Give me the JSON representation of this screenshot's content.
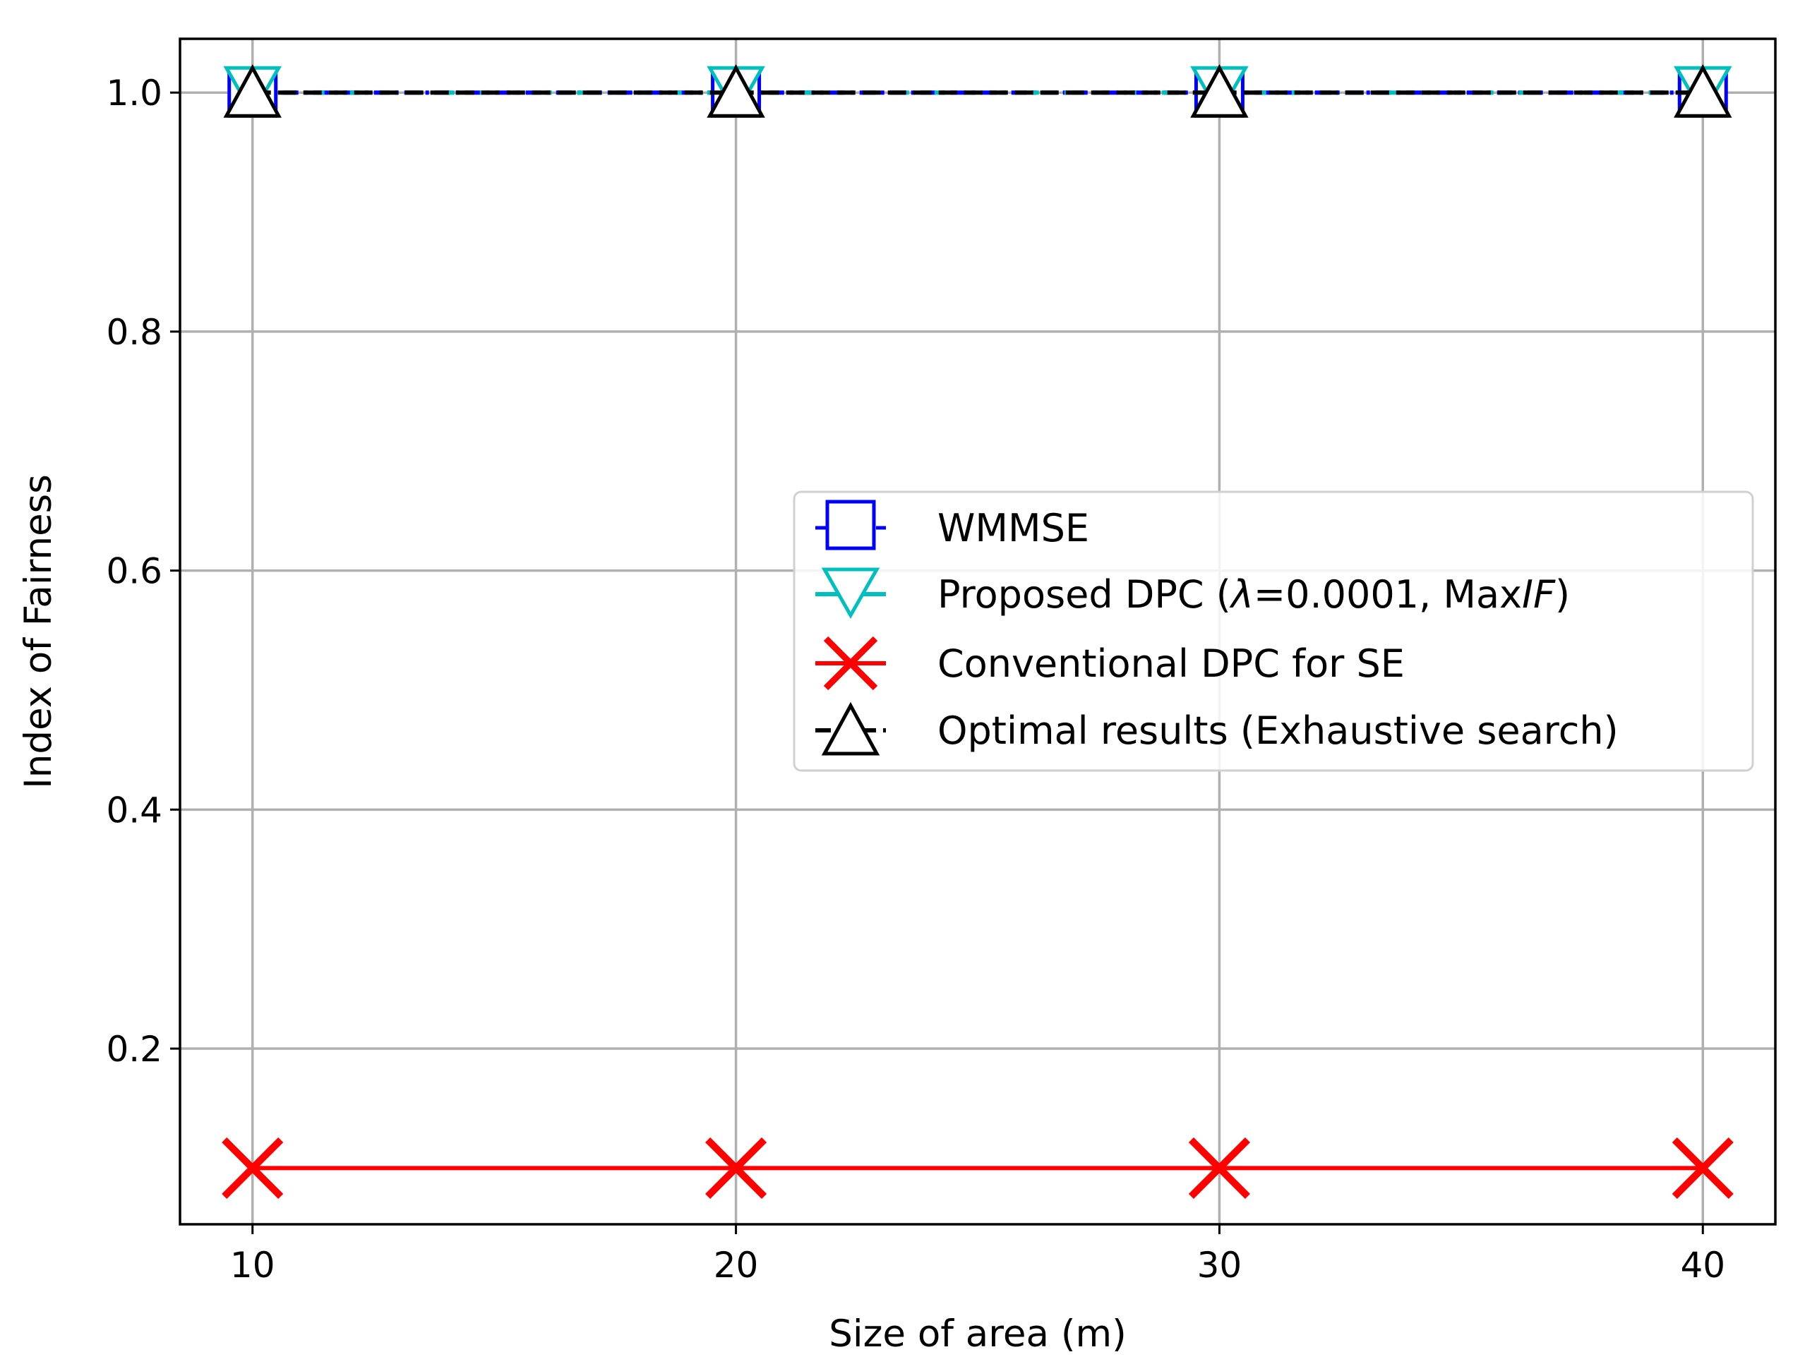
{
  "chart_data": {
    "type": "line",
    "title": "",
    "xlabel": "Size of area (m)",
    "ylabel": "Index of Fairness",
    "x": [
      10,
      20,
      30,
      40
    ],
    "xticks": [
      "10",
      "20",
      "30",
      "40"
    ],
    "yticks": [
      "0.2",
      "0.4",
      "0.6",
      "0.8",
      "1.0"
    ],
    "ytick_values": [
      0.2,
      0.4,
      0.6,
      0.8,
      1.0
    ],
    "xlim": [
      8.5,
      41.5
    ],
    "ylim": [
      0.053,
      1.045
    ],
    "grid": true,
    "legend_position": "center-right",
    "series": [
      {
        "name": "WMMSE",
        "values": [
          1.0,
          1.0,
          1.0,
          1.0
        ],
        "color": "#0000ff",
        "marker": "square",
        "line": "dash-dot"
      },
      {
        "name": "Proposed DPC (λ=0.0001, MaxIF)",
        "values": [
          1.0,
          1.0,
          1.0,
          1.0
        ],
        "color": "#00bfbf",
        "marker": "triangle-down",
        "line": "dotted"
      },
      {
        "name": "Conventional DPC for SE",
        "values": [
          0.1,
          0.1,
          0.1,
          0.1
        ],
        "color": "#ff0000",
        "marker": "x",
        "line": "solid"
      },
      {
        "name": "Optimal results (Exhaustive search)",
        "values": [
          1.0,
          1.0,
          1.0,
          1.0
        ],
        "color": "#000000",
        "marker": "triangle-up",
        "line": "dashed"
      }
    ],
    "legend": {
      "wmmse": "WMMSE",
      "proposed_prefix": "Proposed DPC (",
      "proposed_lambda": "λ",
      "proposed_mid": "=0.0001, Max",
      "proposed_italic": "IF",
      "proposed_suffix": ")",
      "conventional": "Conventional DPC for SE",
      "optimal": "Optimal results (Exhaustive search)"
    }
  }
}
